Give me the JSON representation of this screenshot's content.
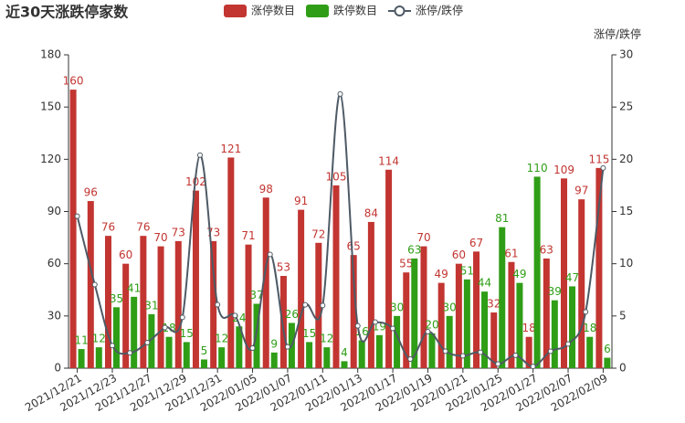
{
  "chart_data": {
    "type": "bar_line",
    "title": "近30天涨跌停家数",
    "y2_label": "涨停/跌停",
    "legend_position": "top",
    "categories": [
      "2021/12/21",
      null,
      "2021/12/23",
      null,
      "2021/12/27",
      null,
      "2021/12/29",
      null,
      "2021/12/31",
      null,
      "2022/01/05",
      null,
      "2022/01/07",
      null,
      "2022/01/11",
      null,
      "2022/01/13",
      null,
      "2022/01/17",
      null,
      "2022/01/19",
      null,
      "2022/01/21",
      null,
      "2022/01/25",
      null,
      "2022/01/27",
      null,
      "2022/02/07",
      null,
      "2022/02/09"
    ],
    "ylim": [
      0,
      180
    ],
    "yticks": [
      0,
      30,
      60,
      90,
      120,
      150,
      180
    ],
    "y2lim": [
      0,
      30
    ],
    "y2ticks": [
      0,
      5,
      10,
      15,
      20,
      25,
      30
    ],
    "series": [
      {
        "name": "涨停数目",
        "kind": "bar",
        "color": "#c23531",
        "values": [
          160,
          96,
          76,
          60,
          76,
          70,
          73,
          102,
          73,
          121,
          71,
          98,
          53,
          91,
          72,
          105,
          65,
          84,
          114,
          55,
          70,
          49,
          60,
          67,
          32,
          61,
          18,
          63,
          109,
          97,
          115
        ]
      },
      {
        "name": "跌停数目",
        "kind": "bar",
        "color": "#2f9e16",
        "values": [
          11,
          12,
          35,
          41,
          31,
          18,
          15,
          5,
          12,
          24,
          37,
          9,
          26,
          15,
          12,
          4,
          16,
          19,
          30,
          63,
          20,
          30,
          51,
          44,
          81,
          49,
          110,
          39,
          47,
          18,
          6
        ]
      },
      {
        "name": "涨停/跌停",
        "kind": "line",
        "axis": "y2",
        "color": "#4e5a65",
        "values": [
          14.55,
          8,
          2.17,
          1.46,
          2.45,
          3.89,
          4.87,
          20.4,
          6.08,
          5.04,
          1.92,
          10.89,
          2.04,
          6.07,
          6,
          26.25,
          4.06,
          4.42,
          3.8,
          0.87,
          3.5,
          1.63,
          1.18,
          1.52,
          0.4,
          1.24,
          0.16,
          1.62,
          2.32,
          5.39,
          19.17
        ]
      }
    ]
  }
}
